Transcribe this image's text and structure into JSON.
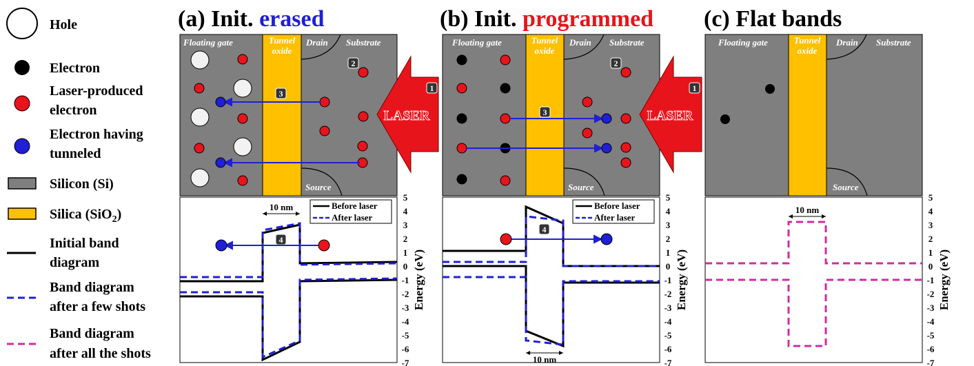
{
  "legend": {
    "hole": "Hole",
    "electron": "Electron",
    "laser_electron": [
      "Laser-produced",
      "electron"
    ],
    "tunneled": [
      "Electron having",
      "tunneled"
    ],
    "silicon": "Silicon (Si)",
    "silica": "Silica (SiO",
    "silica_sub": "2",
    "silica_close": ")",
    "initial_band": [
      "Initial band",
      "diagram"
    ],
    "few_shots": [
      "Band diagram",
      "after a few shots"
    ],
    "all_shots": [
      "Band diagram",
      "after all the shots"
    ]
  },
  "panels": [
    {
      "prefix": "(a) Init. ",
      "highlight": "erased",
      "highlight_color": "#1f1fd6",
      "labels": {
        "floating_gate": "Floating gate",
        "tunnel": "Tunnel",
        "oxide": "oxide",
        "drain": "Drain",
        "substrate": "Substrate",
        "source": "Source",
        "laser": "LASER"
      },
      "steps": {
        "s1": "1",
        "s2": "2",
        "s3": "3",
        "s4": "4"
      },
      "band_legend": {
        "before": "Before laser",
        "after": "After laser"
      },
      "dimension": "10 nm"
    },
    {
      "prefix": "(b) Init. ",
      "highlight": "programmed",
      "highlight_color": "#e8141c",
      "labels": {
        "floating_gate": "Floating gate",
        "tunnel": "Tunnel",
        "oxide": "oxide",
        "drain": "Drain",
        "substrate": "Substrate",
        "source": "Source",
        "laser": "LASER"
      },
      "steps": {
        "s1": "1",
        "s2": "2",
        "s3": "3",
        "s4": "4"
      },
      "band_legend": {
        "before": "Before laser",
        "after": "After laser"
      },
      "dimension": "10 nm"
    },
    {
      "prefix": "(c) Flat bands",
      "highlight": "",
      "highlight_color": "#000000",
      "labels": {
        "floating_gate": "Floating gate",
        "tunnel": "Tunnel",
        "oxide": "oxide",
        "drain": "Drain",
        "substrate": "Substrate",
        "source": "Source"
      },
      "dimension": "10 nm"
    }
  ],
  "axis": {
    "ylabel": "Energy (eV)",
    "ticks": [
      "5",
      "4",
      "3",
      "2",
      "1",
      "0",
      "-1",
      "-2",
      "-3",
      "-4",
      "-5",
      "-6",
      "-7"
    ]
  },
  "colors": {
    "silicon": "#7f7f7f",
    "silica": "#ffc000",
    "electron": "#000000",
    "laser_electron": "#e8141c",
    "tunneled": "#1f1fd6",
    "hole": "#f2f2f2",
    "band_initial": "#000000",
    "band_few": "#1f1fd6",
    "band_all": "#d02ca0",
    "laser_arrow": "#e8141c"
  }
}
